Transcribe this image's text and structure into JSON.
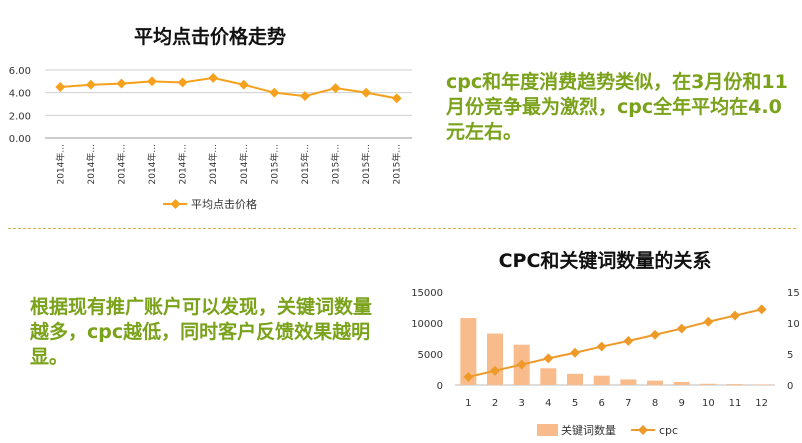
{
  "chart_data": [
    {
      "type": "line",
      "title": "平均点击价格走势",
      "categories": [
        "2014年...",
        "2014年...",
        "2014年...",
        "2014年...",
        "2014年...",
        "2014年...",
        "2014年...",
        "2015年...",
        "2015年...",
        "2015年...",
        "2015年...",
        "2015年..."
      ],
      "series": [
        {
          "name": "平均点击价格",
          "color": "#f5a11d",
          "values": [
            4.5,
            4.7,
            4.8,
            5.0,
            4.9,
            5.3,
            4.7,
            4.0,
            3.7,
            4.4,
            4.0,
            3.5
          ]
        }
      ],
      "yticks": [
        "6.00",
        "4.00",
        "2.00",
        "0.00"
      ],
      "ylim": [
        0,
        6
      ],
      "grid": true,
      "legend": "bottom"
    },
    {
      "type": "bar",
      "title": "CPC和关键词数量的关系",
      "categories": [
        "1",
        "2",
        "3",
        "4",
        "5",
        "6",
        "7",
        "8",
        "9",
        "10",
        "11",
        "12"
      ],
      "series": [
        {
          "name": "关键词数量",
          "type": "bar",
          "axis": "left",
          "color": "#f8bc8c",
          "values": [
            10800,
            8300,
            6500,
            2700,
            1800,
            1500,
            900,
            700,
            500,
            200,
            150,
            100
          ]
        },
        {
          "name": "cpc",
          "type": "line",
          "axis": "right",
          "color": "#ee9a29",
          "values": [
            1.3,
            2.3,
            3.3,
            4.3,
            5.2,
            6.2,
            7.1,
            8.1,
            9.1,
            10.2,
            11.2,
            12.2
          ]
        }
      ],
      "yticks_left": [
        "15000",
        "10000",
        "5000",
        "0"
      ],
      "yticks_right": [
        "15",
        "10",
        "5",
        "0"
      ],
      "ylim_left": [
        0,
        15000
      ],
      "ylim_right": [
        0,
        15
      ],
      "grid": false,
      "legend": "bottom"
    }
  ],
  "note1": "cpc和年度消费趋势类似，在3月份和11月份竞争最为激烈，cpc全年平均在4.0元左右。",
  "note2": "根据现有推广账户可以发现，关键词数量越多，cpc越低，同时客户反馈效果越明显。"
}
